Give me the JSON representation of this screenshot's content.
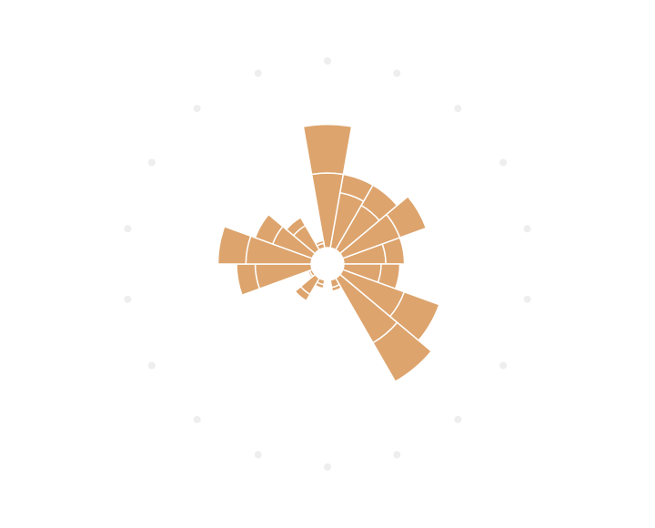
{
  "chart_data": {
    "type": "polar-bar",
    "categories": [
      null,
      null,
      null,
      null,
      null,
      null,
      null,
      null,
      null,
      null,
      null,
      null,
      null,
      null,
      null,
      null,
      null,
      null
    ],
    "series": [
      {
        "color": "#dda46d",
        "values": [
          80,
          60,
          55,
          65,
          45,
          40,
          70,
          80,
          8,
          0,
          5,
          20,
          3,
          60,
          70,
          45,
          30,
          5
        ]
      },
      {
        "color": "#dda46d",
        "values": [
          52,
          20,
          25,
          30,
          20,
          20,
          40,
          48,
          4,
          0,
          4,
          8,
          2,
          20,
          30,
          20,
          10,
          3
        ]
      }
    ],
    "rlim": [
      0,
      200
    ],
    "grid": true
  }
}
